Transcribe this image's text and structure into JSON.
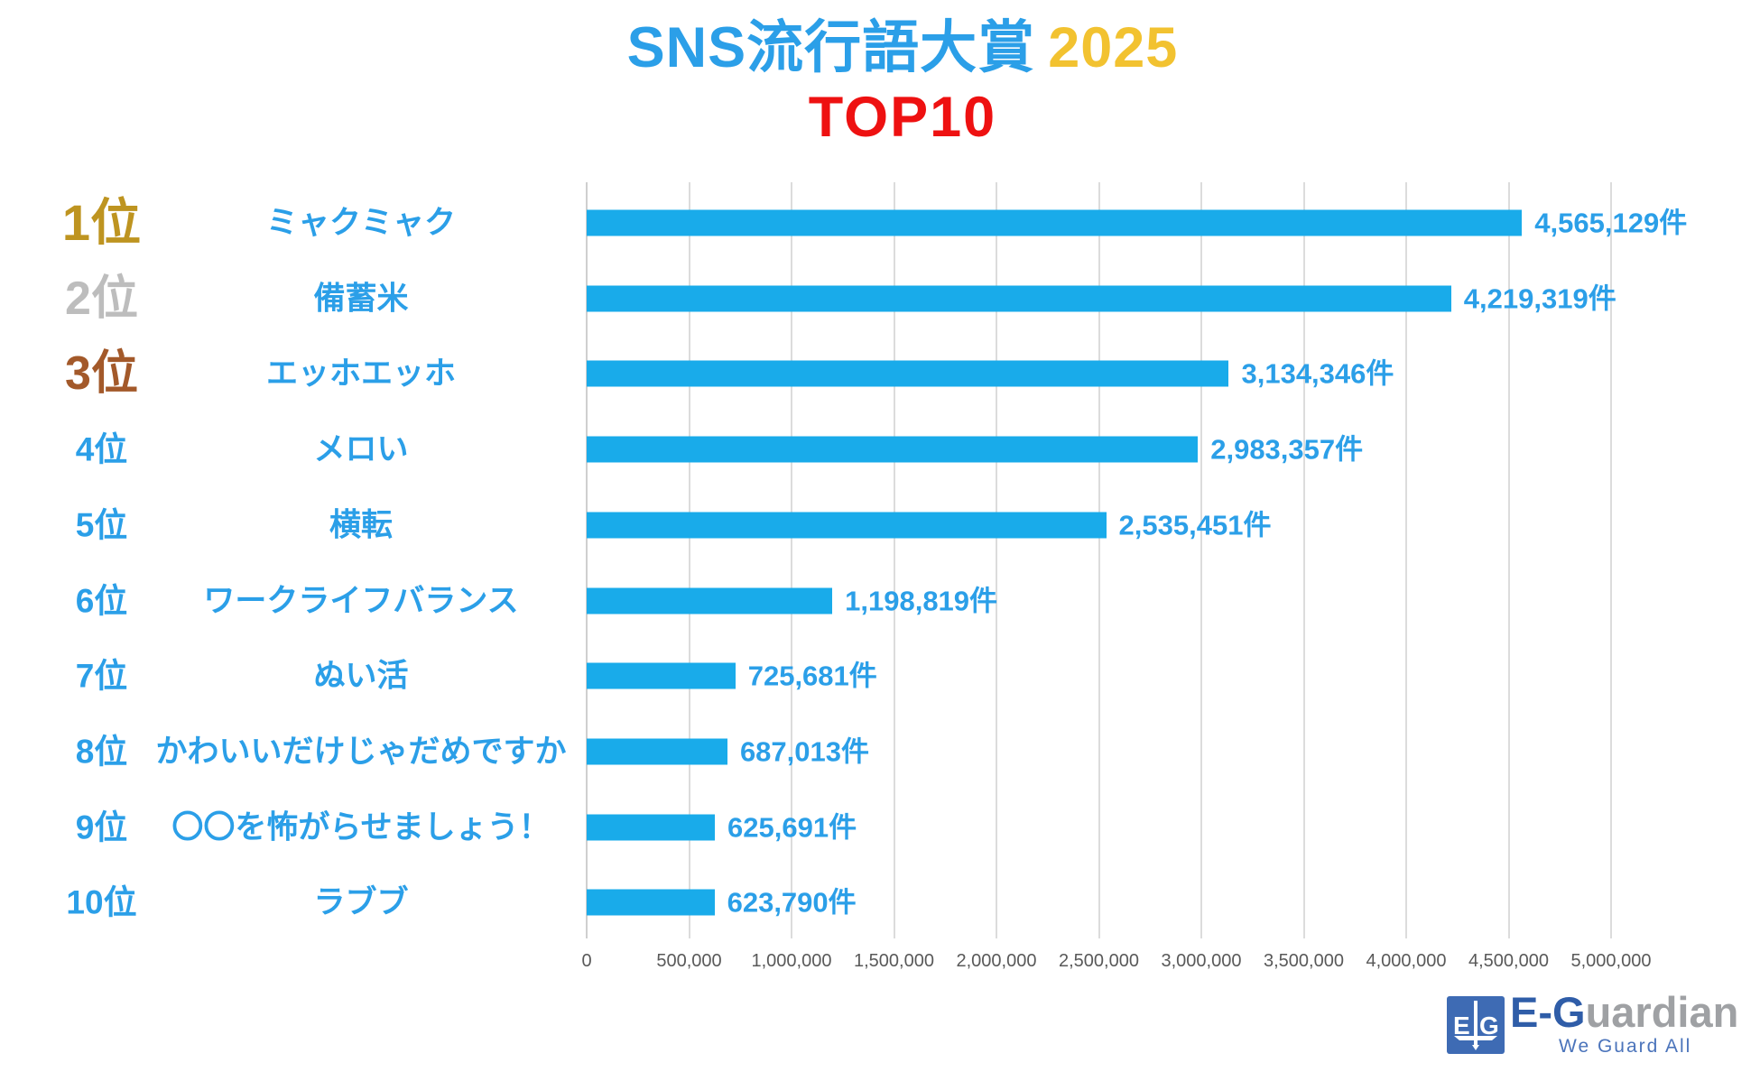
{
  "title": {
    "main": "SNS流行語大賞",
    "year": "2025",
    "sub": "TOP10"
  },
  "colors": {
    "bar": "#19ABEA",
    "label_blue": "#2B9FE8",
    "title_blue": "#2B9FE8",
    "year_gold": "#F2C230",
    "top10_red": "#EE1111",
    "rank1_gold": "#BE9420",
    "rank2_silver": "#BDBDBD",
    "rank3_bronze": "#A3592A",
    "axis_gray": "#595959",
    "gridline_gray": "#DCDCDC",
    "logo_blue": "#3E6BB4"
  },
  "rows": [
    {
      "rank": "1位",
      "rank_class": "r1",
      "label": "ミャクミャク",
      "value": 4565129,
      "value_text": "4,565,129件"
    },
    {
      "rank": "2位",
      "rank_class": "r2",
      "label": "備蓄米",
      "value": 4219319,
      "value_text": "4,219,319件"
    },
    {
      "rank": "3位",
      "rank_class": "r3",
      "label": "エッホエッホ",
      "value": 3134346,
      "value_text": "3,134,346件"
    },
    {
      "rank": "4位",
      "rank_class": "rn",
      "label": "メロい",
      "value": 2983357,
      "value_text": "2,983,357件"
    },
    {
      "rank": "5位",
      "rank_class": "rn",
      "label": "横転",
      "value": 2535451,
      "value_text": "2,535,451件"
    },
    {
      "rank": "6位",
      "rank_class": "rn",
      "label": "ワークライフバランス",
      "value": 1198819,
      "value_text": "1,198,819件"
    },
    {
      "rank": "7位",
      "rank_class": "rn",
      "label": "ぬい活",
      "value": 725681,
      "value_text": "725,681件"
    },
    {
      "rank": "8位",
      "rank_class": "rn",
      "label": "かわいいだけじゃだめですか",
      "value": 687013,
      "value_text": "687,013件"
    },
    {
      "rank": "9位",
      "rank_class": "rn",
      "label": "〇〇を怖がらせましょう！",
      "value": 625691,
      "value_text": "625,691件"
    },
    {
      "rank": "10位",
      "rank_class": "rn",
      "label": "ラブブ",
      "value": 623790,
      "value_text": "623,790件"
    }
  ],
  "axis": {
    "tick_labels": [
      "0",
      "500,000",
      "1,000,000",
      "1,500,000",
      "2,000,000",
      "2,500,000",
      "3,000,000",
      "3,500,000",
      "4,000,000",
      "4,500,000",
      "5,000,000"
    ],
    "tick_values": [
      0,
      500000,
      1000000,
      1500000,
      2000000,
      2500000,
      3000000,
      3500000,
      4000000,
      4500000,
      5000000
    ],
    "max": 5000000
  },
  "logo": {
    "icon_left": "E",
    "icon_right": "G",
    "name_blue": "E-G",
    "name_gray": "uardian",
    "tagline": "We Guard All"
  },
  "chart_data": {
    "type": "bar",
    "orientation": "horizontal",
    "title": "SNS流行語大賞 2025 TOP10",
    "categories": [
      "ミャクミャク",
      "備蓄米",
      "エッホエッホ",
      "メロい",
      "横転",
      "ワークライフバランス",
      "ぬい活",
      "かわいいだけじゃだめですか",
      "〇〇を怖がらせましょう！",
      "ラブブ"
    ],
    "values": [
      4565129,
      4219319,
      3134346,
      2983357,
      2535451,
      1198819,
      725681,
      687013,
      625691,
      623790
    ],
    "data_labels": [
      "4,565,129件",
      "4,219,319件",
      "3,134,346件",
      "2,983,357件",
      "2,535,451件",
      "1,198,819件",
      "725,681件",
      "687,013件",
      "625,691件",
      "623,790件"
    ],
    "ranks": [
      "1位",
      "2位",
      "3位",
      "4位",
      "5位",
      "6位",
      "7位",
      "8位",
      "9位",
      "10位"
    ],
    "unit": "件",
    "xlabel": "",
    "ylabel": "",
    "xlim": [
      0,
      5000000
    ],
    "xticks": [
      0,
      500000,
      1000000,
      1500000,
      2000000,
      2500000,
      3000000,
      3500000,
      4000000,
      4500000,
      5000000
    ],
    "grid": "vertical-only",
    "legend": "none"
  }
}
